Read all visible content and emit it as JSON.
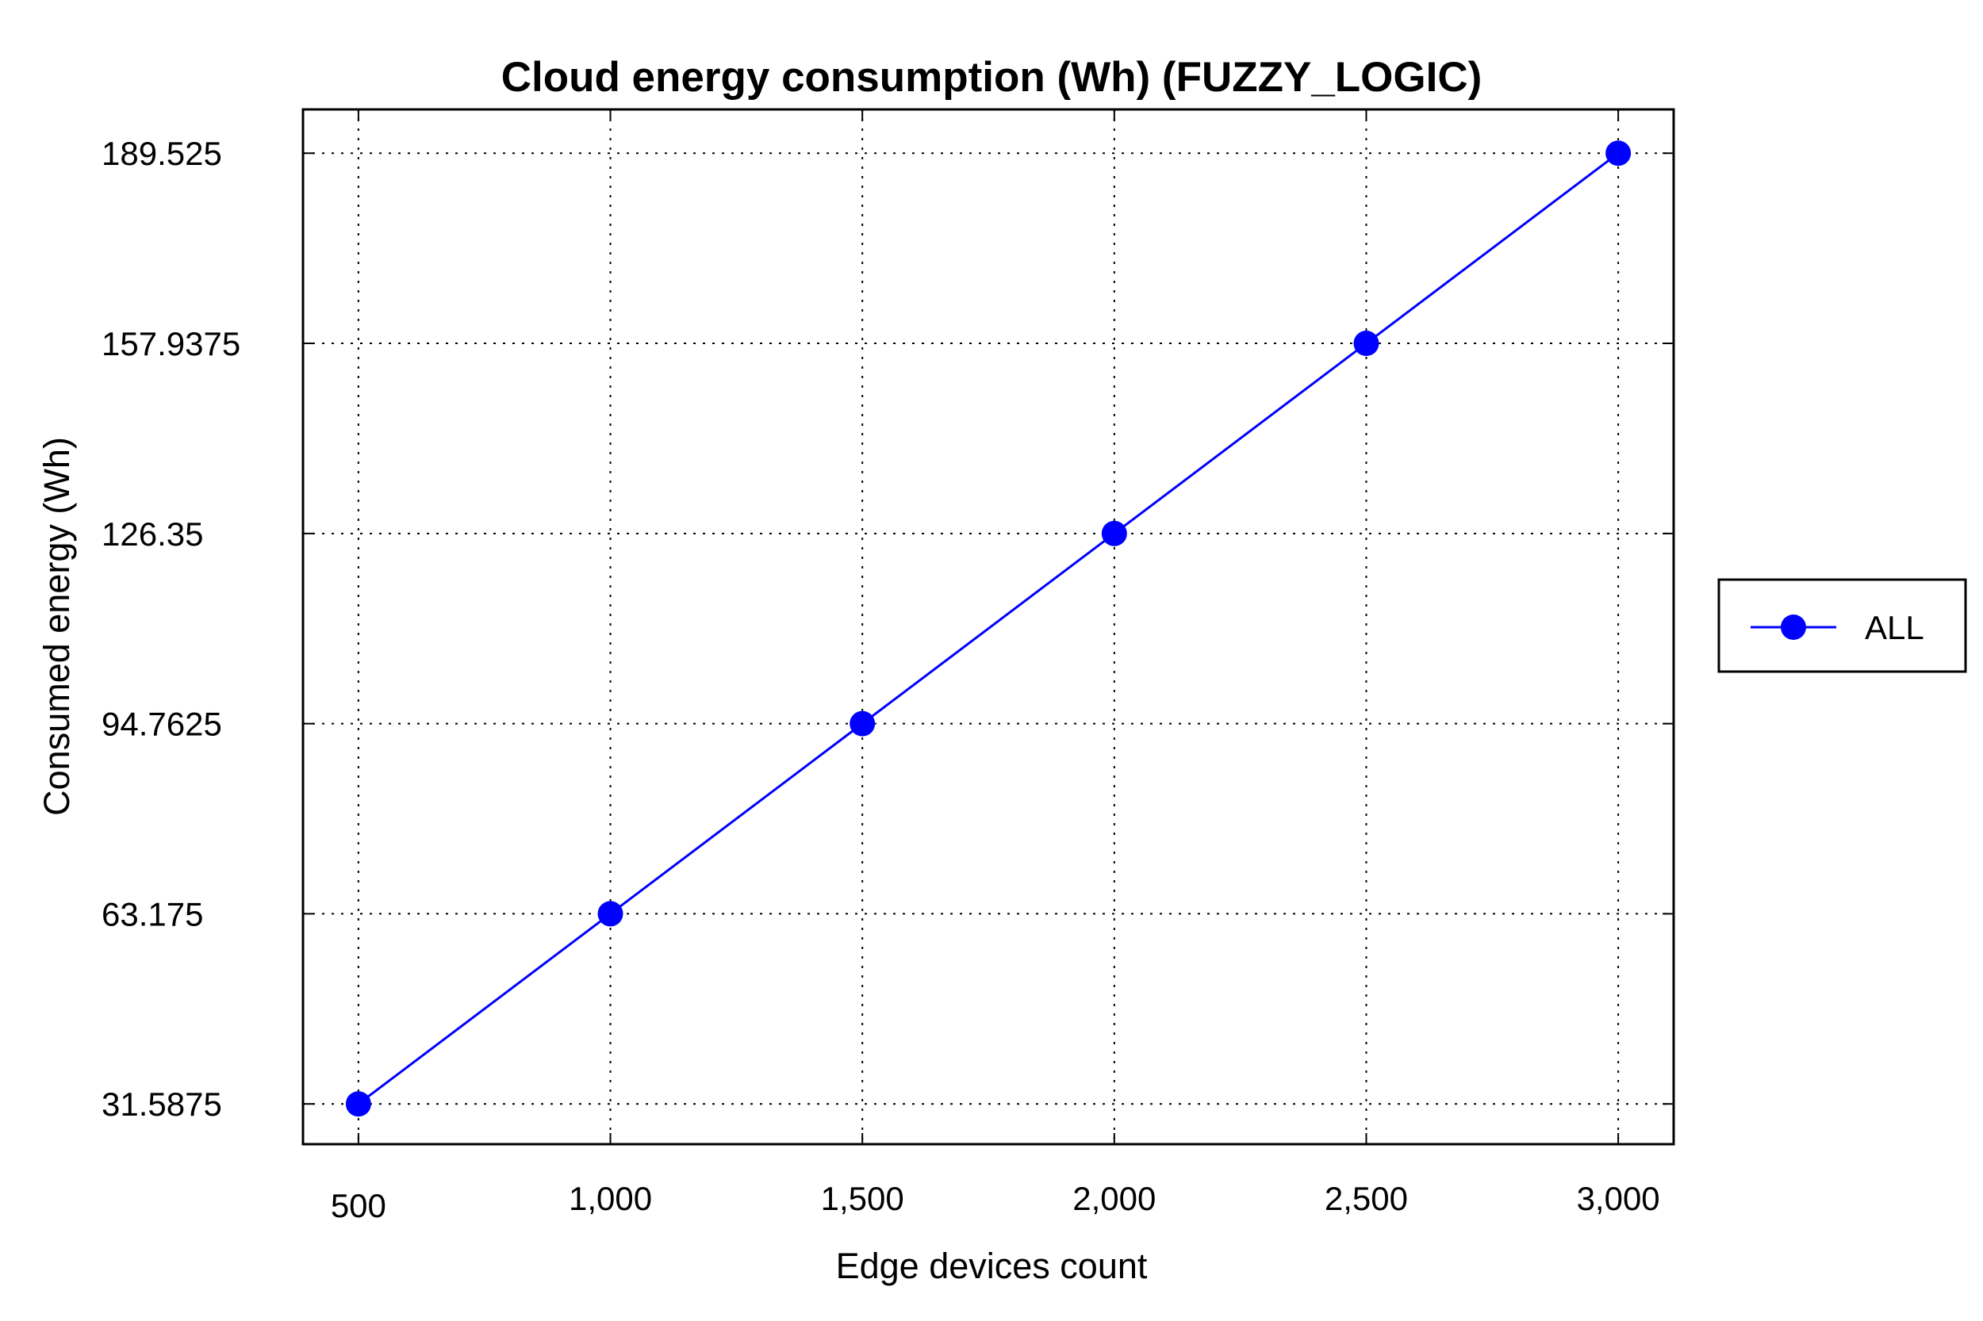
{
  "chart_data": {
    "type": "line",
    "title": "Cloud energy consumption (Wh) (FUZZY_LOGIC)",
    "xlabel": "Edge devices count",
    "ylabel": "Consumed energy (Wh)",
    "x": [
      500,
      1000,
      1500,
      2000,
      2500,
      3000
    ],
    "x_tick_labels": [
      "500",
      "1,000",
      "1,500",
      "2,000",
      "2,500",
      "3,000"
    ],
    "y_ticks": [
      31.5875,
      63.175,
      94.7625,
      126.35,
      157.9375,
      189.525
    ],
    "y_tick_labels": [
      "31.5875",
      "63.175",
      "94.7625",
      "126.35",
      "157.9375",
      "189.525"
    ],
    "xlim": [
      390,
      3110
    ],
    "ylim": [
      24.9,
      196.8
    ],
    "grid": true,
    "legend_position": "right",
    "series": [
      {
        "name": "ALL",
        "color": "#0000ff",
        "marker": "circle",
        "values": [
          31.5875,
          63.175,
          94.7625,
          126.35,
          157.9375,
          189.525
        ]
      }
    ]
  }
}
